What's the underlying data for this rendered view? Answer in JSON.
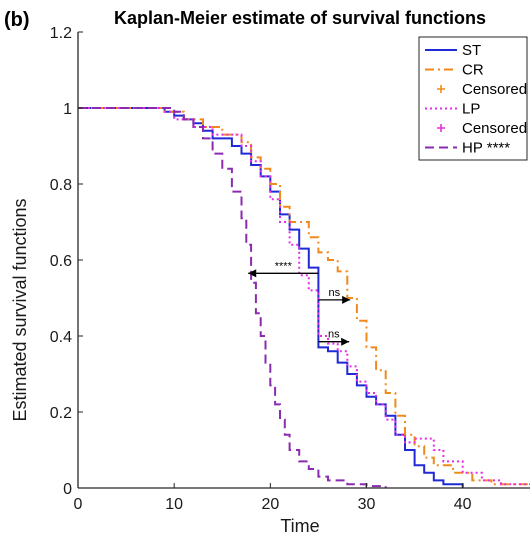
{
  "chart_data": {
    "type": "line",
    "panel_label": "(b)",
    "title": "Kaplan-Meier estimate of survival functions",
    "xlabel": "Time",
    "ylabel": "Estimated survival functions",
    "xlim": [
      0,
      47
    ],
    "ylim": [
      0,
      1.2
    ],
    "xticks": [
      0,
      10,
      20,
      30,
      40
    ],
    "yticks": [
      0,
      0.2,
      0.4,
      0.6,
      0.8,
      1,
      1.2
    ],
    "ytick_labels": [
      "0",
      "0.2",
      "0.4",
      "0.6",
      "0.8",
      "1",
      "1.2"
    ],
    "xtick_labels": [
      "0",
      "10",
      "20",
      "30",
      "40"
    ],
    "grid": false,
    "legend_position": "top-right",
    "legend": [
      {
        "label": "ST",
        "color": "#1f2ad6",
        "style": "solid",
        "marker": "line"
      },
      {
        "label": "CR",
        "color": "#f08a1c",
        "style": "dashdot",
        "marker": "line"
      },
      {
        "label": "Censored",
        "color": "#f08a1c",
        "style": "none",
        "marker": "plus"
      },
      {
        "label": "LP",
        "color": "#e62de6",
        "style": "dotted",
        "marker": "line"
      },
      {
        "label": "Censored",
        "color": "#e62de6",
        "style": "none",
        "marker": "plus"
      },
      {
        "label": "HP ****",
        "color": "#8a2bb0",
        "style": "dashed",
        "marker": "line"
      }
    ],
    "series": [
      {
        "name": "ST",
        "color": "#1f2ad6",
        "style": "solid",
        "points": [
          [
            0,
            1
          ],
          [
            9,
            1
          ],
          [
            9,
            0.99
          ],
          [
            10,
            0.99
          ],
          [
            10,
            0.98
          ],
          [
            11,
            0.98
          ],
          [
            11,
            0.97
          ],
          [
            12,
            0.97
          ],
          [
            12,
            0.96
          ],
          [
            13,
            0.96
          ],
          [
            13,
            0.94
          ],
          [
            14,
            0.94
          ],
          [
            14,
            0.92
          ],
          [
            16,
            0.92
          ],
          [
            16,
            0.9
          ],
          [
            17,
            0.9
          ],
          [
            17,
            0.88
          ],
          [
            18,
            0.88
          ],
          [
            18,
            0.85
          ],
          [
            19,
            0.85
          ],
          [
            19,
            0.82
          ],
          [
            20,
            0.82
          ],
          [
            20,
            0.78
          ],
          [
            21,
            0.78
          ],
          [
            21,
            0.72
          ],
          [
            22,
            0.72
          ],
          [
            22,
            0.68
          ],
          [
            23,
            0.68
          ],
          [
            23,
            0.63
          ],
          [
            24,
            0.63
          ],
          [
            24,
            0.58
          ],
          [
            25,
            0.58
          ],
          [
            25,
            0.37
          ],
          [
            26,
            0.37
          ],
          [
            26,
            0.36
          ],
          [
            27,
            0.36
          ],
          [
            27,
            0.33
          ],
          [
            28,
            0.33
          ],
          [
            28,
            0.3
          ],
          [
            29,
            0.3
          ],
          [
            29,
            0.27
          ],
          [
            30,
            0.27
          ],
          [
            30,
            0.24
          ],
          [
            31,
            0.24
          ],
          [
            31,
            0.22
          ],
          [
            32,
            0.22
          ],
          [
            32,
            0.19
          ],
          [
            33,
            0.19
          ],
          [
            33,
            0.14
          ],
          [
            34,
            0.14
          ],
          [
            34,
            0.1
          ],
          [
            35,
            0.1
          ],
          [
            35,
            0.06
          ],
          [
            36,
            0.06
          ],
          [
            36,
            0.04
          ],
          [
            37,
            0.04
          ],
          [
            37,
            0.02
          ],
          [
            38,
            0.02
          ],
          [
            38,
            0.01
          ],
          [
            40,
            0.01
          ],
          [
            40,
            0
          ]
        ]
      },
      {
        "name": "CR",
        "color": "#f08a1c",
        "style": "dashdot",
        "points": [
          [
            0,
            1
          ],
          [
            9,
            1
          ],
          [
            9,
            0.99
          ],
          [
            11,
            0.99
          ],
          [
            11,
            0.97
          ],
          [
            13,
            0.97
          ],
          [
            13,
            0.95
          ],
          [
            15,
            0.95
          ],
          [
            15,
            0.93
          ],
          [
            17,
            0.93
          ],
          [
            17,
            0.91
          ],
          [
            18,
            0.91
          ],
          [
            18,
            0.87
          ],
          [
            19,
            0.87
          ],
          [
            19,
            0.84
          ],
          [
            20,
            0.84
          ],
          [
            20,
            0.8
          ],
          [
            21,
            0.8
          ],
          [
            21,
            0.74
          ],
          [
            22,
            0.74
          ],
          [
            22,
            0.7
          ],
          [
            24,
            0.7
          ],
          [
            24,
            0.66
          ],
          [
            25,
            0.66
          ],
          [
            25,
            0.62
          ],
          [
            26,
            0.62
          ],
          [
            26,
            0.6
          ],
          [
            27,
            0.6
          ],
          [
            27,
            0.57
          ],
          [
            28,
            0.57
          ],
          [
            28,
            0.5
          ],
          [
            29,
            0.5
          ],
          [
            29,
            0.44
          ],
          [
            30,
            0.44
          ],
          [
            30,
            0.37
          ],
          [
            31,
            0.37
          ],
          [
            31,
            0.31
          ],
          [
            32,
            0.31
          ],
          [
            32,
            0.25
          ],
          [
            33,
            0.25
          ],
          [
            33,
            0.19
          ],
          [
            34,
            0.19
          ],
          [
            34,
            0.14
          ],
          [
            35,
            0.14
          ],
          [
            35,
            0.11
          ],
          [
            36,
            0.11
          ],
          [
            36,
            0.08
          ],
          [
            37,
            0.08
          ],
          [
            37,
            0.06
          ],
          [
            39,
            0.06
          ],
          [
            39,
            0.04
          ],
          [
            41,
            0.04
          ],
          [
            41,
            0.02
          ],
          [
            43,
            0.02
          ],
          [
            43,
            0.01
          ],
          [
            47,
            0.01
          ]
        ]
      },
      {
        "name": "LP",
        "color": "#e62de6",
        "style": "dotted",
        "points": [
          [
            0,
            1
          ],
          [
            9,
            1
          ],
          [
            9,
            0.99
          ],
          [
            10,
            0.99
          ],
          [
            10,
            0.97
          ],
          [
            12,
            0.97
          ],
          [
            12,
            0.95
          ],
          [
            14,
            0.95
          ],
          [
            14,
            0.93
          ],
          [
            17,
            0.93
          ],
          [
            17,
            0.9
          ],
          [
            18,
            0.9
          ],
          [
            18,
            0.86
          ],
          [
            19,
            0.86
          ],
          [
            19,
            0.82
          ],
          [
            20,
            0.82
          ],
          [
            20,
            0.76
          ],
          [
            21,
            0.76
          ],
          [
            21,
            0.7
          ],
          [
            22,
            0.7
          ],
          [
            22,
            0.64
          ],
          [
            23,
            0.64
          ],
          [
            23,
            0.56
          ],
          [
            24,
            0.56
          ],
          [
            24,
            0.52
          ],
          [
            25,
            0.52
          ],
          [
            25,
            0.4
          ],
          [
            26,
            0.4
          ],
          [
            26,
            0.38
          ],
          [
            27,
            0.38
          ],
          [
            27,
            0.36
          ],
          [
            28,
            0.36
          ],
          [
            28,
            0.32
          ],
          [
            29,
            0.32
          ],
          [
            29,
            0.28
          ],
          [
            30,
            0.28
          ],
          [
            30,
            0.25
          ],
          [
            31,
            0.25
          ],
          [
            31,
            0.22
          ],
          [
            32,
            0.22
          ],
          [
            32,
            0.18
          ],
          [
            33,
            0.18
          ],
          [
            33,
            0.14
          ],
          [
            34,
            0.14
          ],
          [
            34,
            0.12
          ],
          [
            35,
            0.12
          ],
          [
            35,
            0.13
          ],
          [
            37,
            0.13
          ],
          [
            37,
            0.1
          ],
          [
            38,
            0.1
          ],
          [
            38,
            0.07
          ],
          [
            40,
            0.07
          ],
          [
            40,
            0.04
          ],
          [
            42,
            0.04
          ],
          [
            42,
            0.02
          ],
          [
            44,
            0.02
          ],
          [
            44,
            0.01
          ],
          [
            47,
            0.01
          ]
        ]
      },
      {
        "name": "HP ****",
        "color": "#8a2bb0",
        "style": "dashed",
        "points": [
          [
            0,
            1
          ],
          [
            10,
            1
          ],
          [
            10,
            0.99
          ],
          [
            11,
            0.99
          ],
          [
            11,
            0.97
          ],
          [
            12,
            0.97
          ],
          [
            12,
            0.95
          ],
          [
            13,
            0.95
          ],
          [
            13,
            0.92
          ],
          [
            14,
            0.92
          ],
          [
            14,
            0.88
          ],
          [
            15,
            0.88
          ],
          [
            15,
            0.84
          ],
          [
            16,
            0.84
          ],
          [
            16,
            0.78
          ],
          [
            17,
            0.78
          ],
          [
            17,
            0.71
          ],
          [
            17.5,
            0.71
          ],
          [
            17.5,
            0.64
          ],
          [
            18,
            0.64
          ],
          [
            18,
            0.54
          ],
          [
            18.5,
            0.54
          ],
          [
            18.5,
            0.46
          ],
          [
            19,
            0.46
          ],
          [
            19,
            0.4
          ],
          [
            19.5,
            0.4
          ],
          [
            19.5,
            0.33
          ],
          [
            20,
            0.33
          ],
          [
            20,
            0.27
          ],
          [
            20.5,
            0.27
          ],
          [
            20.5,
            0.22
          ],
          [
            21,
            0.22
          ],
          [
            21,
            0.18
          ],
          [
            21.5,
            0.18
          ],
          [
            21.5,
            0.14
          ],
          [
            22,
            0.14
          ],
          [
            22,
            0.1
          ],
          [
            23,
            0.1
          ],
          [
            23,
            0.07
          ],
          [
            24,
            0.07
          ],
          [
            24,
            0.05
          ],
          [
            25,
            0.05
          ],
          [
            25,
            0.03
          ],
          [
            26,
            0.03
          ],
          [
            26,
            0.02
          ],
          [
            28,
            0.02
          ],
          [
            28,
            0.01
          ],
          [
            30,
            0.01
          ],
          [
            30,
            0.005
          ],
          [
            32,
            0.005
          ],
          [
            32,
            0
          ]
        ]
      }
    ],
    "annotations": [
      {
        "label": "****",
        "from": [
          25,
          0.565
        ],
        "to": [
          17.7,
          0.565
        ]
      },
      {
        "label": "ns",
        "from": [
          25,
          0.495
        ],
        "to": [
          28.3,
          0.495
        ]
      },
      {
        "label": "ns",
        "from": [
          25,
          0.385
        ],
        "to": [
          28.2,
          0.385
        ]
      }
    ]
  }
}
